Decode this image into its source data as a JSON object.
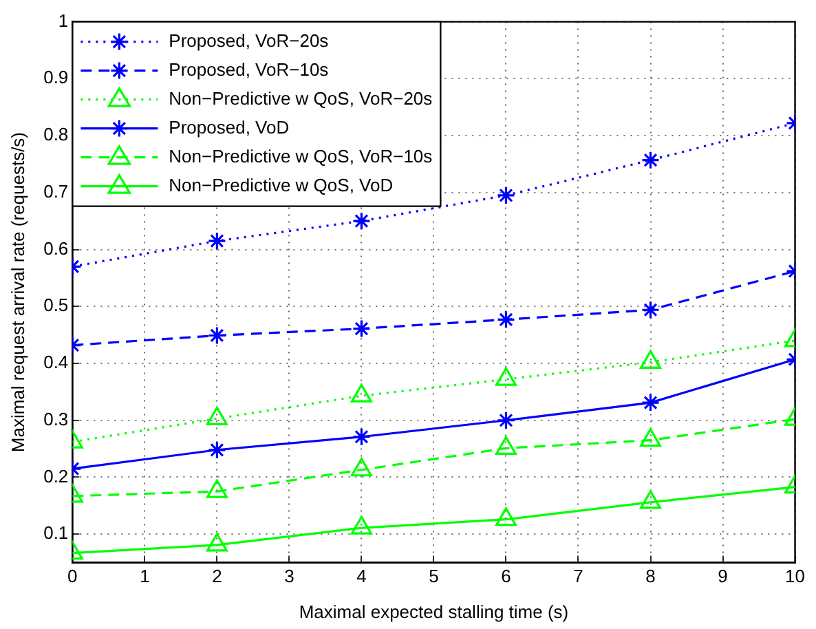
{
  "chart_data": {
    "type": "line",
    "xlabel": "Maximal expected stalling time (s)",
    "ylabel": "Maximal request arrival rate (requests/s)",
    "x": [
      0,
      2,
      4,
      6,
      8,
      10
    ],
    "xlim": [
      0,
      10
    ],
    "xticks": [
      0,
      1,
      2,
      3,
      4,
      5,
      6,
      7,
      8,
      9,
      10
    ],
    "ylim": [
      0.05,
      1
    ],
    "yticks": [
      0.1,
      0.2,
      0.3,
      0.4,
      0.5,
      0.6,
      0.7,
      0.8,
      0.9,
      1
    ],
    "grid": true,
    "legend": "top left",
    "series": [
      {
        "name": "Proposed, VoR−20s",
        "color": "#0000ff",
        "marker": "cross",
        "line_style": "dotted",
        "values": [
          0.57,
          0.615,
          0.65,
          0.695,
          0.757,
          0.822
        ]
      },
      {
        "name": "Proposed, VoR−10s",
        "color": "#0000ff",
        "marker": "cross",
        "line_style": "dashed",
        "values": [
          0.432,
          0.449,
          0.461,
          0.477,
          0.494,
          0.562
        ]
      },
      {
        "name": "Non−Predictive w QoS, VoR−20s",
        "color": "#00ff00",
        "marker": "triangle",
        "line_style": "dotted",
        "values": [
          0.262,
          0.303,
          0.343,
          0.372,
          0.402,
          0.44
        ]
      },
      {
        "name": "Proposed, VoD",
        "color": "#0000ff",
        "marker": "cross",
        "line_style": "solid",
        "values": [
          0.215,
          0.248,
          0.271,
          0.3,
          0.331,
          0.407
        ]
      },
      {
        "name": "Non−Predictive w QoS, VoR−10s",
        "color": "#00ff00",
        "marker": "triangle",
        "line_style": "dashed",
        "values": [
          0.167,
          0.175,
          0.213,
          0.251,
          0.265,
          0.302
        ]
      },
      {
        "name": "Non−Predictive w QoS, VoD",
        "color": "#00ff00",
        "marker": "triangle",
        "line_style": "solid",
        "values": [
          0.067,
          0.081,
          0.111,
          0.126,
          0.156,
          0.183
        ]
      }
    ]
  }
}
